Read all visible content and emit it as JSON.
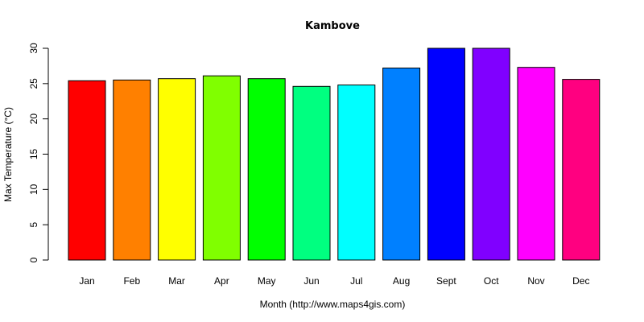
{
  "chart_data": {
    "type": "bar",
    "title": "Kambove",
    "xlabel": "Month (http://www.maps4gis.com)",
    "ylabel": "Max Temperature (°C)",
    "categories": [
      "Jan",
      "Feb",
      "Mar",
      "Apr",
      "May",
      "Jun",
      "Jul",
      "Aug",
      "Sept",
      "Oct",
      "Nov",
      "Dec"
    ],
    "values": [
      25.4,
      25.5,
      25.7,
      26.1,
      25.7,
      24.6,
      24.8,
      27.2,
      30.0,
      30.0,
      27.3,
      25.6
    ],
    "colors": [
      "#FF0000",
      "#FF8000",
      "#FFFF00",
      "#80FF00",
      "#00FF00",
      "#00FF80",
      "#00FFFF",
      "#0080FF",
      "#0000FF",
      "#8000FF",
      "#FF00FF",
      "#FF0080"
    ],
    "ylim": [
      0,
      30
    ],
    "yticks": [
      0,
      5,
      10,
      15,
      20,
      25,
      30
    ],
    "grid": false,
    "legend": null
  }
}
